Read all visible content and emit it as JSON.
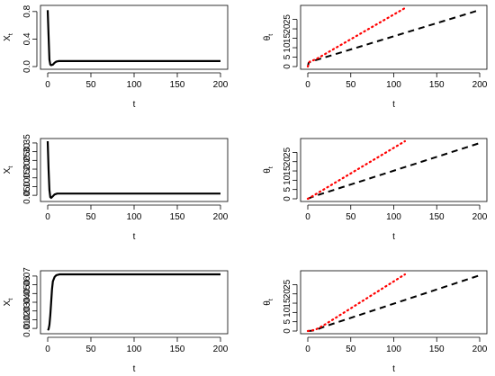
{
  "chart_data": [
    {
      "type": "line",
      "xlabel": "t",
      "ylabel": "X",
      "ylabel_sub": "t",
      "xlim": [
        0,
        200
      ],
      "ylim": [
        0,
        0.85
      ],
      "x_ticks": [
        0,
        50,
        100,
        150,
        200
      ],
      "y_ticks": [
        0.0,
        0.4,
        0.8
      ],
      "y_tick_labels": [
        "0.0",
        "0.4",
        "0.8"
      ],
      "series": [
        {
          "color": "#000000",
          "style": "solid",
          "points": [
            [
              0,
              0.82
            ],
            [
              1,
              0.45
            ],
            [
              2,
              0.1
            ],
            [
              3,
              0.03
            ],
            [
              4,
              0.02
            ],
            [
              6,
              0.028
            ],
            [
              8,
              0.055
            ],
            [
              10,
              0.073
            ],
            [
              13,
              0.08
            ],
            [
              20,
              0.08
            ],
            [
              200,
              0.08
            ]
          ]
        }
      ]
    },
    {
      "type": "line",
      "xlabel": "t",
      "ylabel": "θ",
      "ylabel_sub": "t",
      "xlim": [
        0,
        200
      ],
      "ylim": [
        0,
        31
      ],
      "x_ticks": [
        0,
        50,
        100,
        150,
        200
      ],
      "y_ticks": [
        0,
        5,
        10,
        15,
        20,
        25
      ],
      "y_tick_labels": [
        "0",
        "5",
        "10",
        "15",
        "20",
        "25"
      ],
      "series": [
        {
          "color": "#000000",
          "style": "dashed",
          "points": [
            [
              0,
              0
            ],
            [
              1,
              2
            ],
            [
              3,
              2.5
            ],
            [
              10,
              3.5
            ],
            [
              200,
              30
            ]
          ]
        },
        {
          "color": "#ff0000",
          "style": "dotted",
          "points": [
            [
              0,
              0
            ],
            [
              2,
              2.5
            ],
            [
              10,
              4
            ],
            [
              113,
              31
            ]
          ]
        }
      ]
    },
    {
      "type": "line",
      "xlabel": "t",
      "ylabel": "X",
      "ylabel_sub": "t",
      "xlim": [
        0,
        200
      ],
      "ylim": [
        0.03,
        0.36
      ],
      "x_ticks": [
        0,
        50,
        100,
        150,
        200
      ],
      "y_ticks": [
        0.05,
        0.1,
        0.15,
        0.2,
        0.25,
        0.3,
        0.35
      ],
      "y_tick_labels": [
        "0.05",
        "0.10",
        "0.15",
        "0.20",
        "0.25",
        "0.30",
        "0.35"
      ],
      "series": [
        {
          "color": "#000000",
          "style": "solid",
          "points": [
            [
              0,
              0.36
            ],
            [
              1,
              0.2
            ],
            [
              2,
              0.08
            ],
            [
              3,
              0.04
            ],
            [
              4,
              0.035
            ],
            [
              6,
              0.045
            ],
            [
              8,
              0.055
            ],
            [
              11,
              0.06
            ],
            [
              20,
              0.06
            ],
            [
              200,
              0.06
            ]
          ]
        }
      ]
    },
    {
      "type": "line",
      "xlabel": "t",
      "ylabel": "θ",
      "ylabel_sub": "t",
      "xlim": [
        0,
        200
      ],
      "ylim": [
        0,
        31
      ],
      "x_ticks": [
        0,
        50,
        100,
        150,
        200
      ],
      "y_ticks": [
        0,
        5,
        10,
        15,
        20,
        25
      ],
      "y_tick_labels": [
        "0",
        "5",
        "10",
        "15",
        "20",
        "25"
      ],
      "series": [
        {
          "color": "#000000",
          "style": "dashed",
          "points": [
            [
              0,
              0
            ],
            [
              5,
              1
            ],
            [
              200,
              30
            ]
          ]
        },
        {
          "color": "#ff0000",
          "style": "dotted",
          "points": [
            [
              0,
              0
            ],
            [
              5,
              1.3
            ],
            [
              113,
              31
            ]
          ]
        }
      ]
    },
    {
      "type": "line",
      "xlabel": "t",
      "ylabel": "X",
      "ylabel_sub": "t",
      "xlim": [
        0,
        200
      ],
      "ylim": [
        0.007,
        0.073
      ],
      "x_ticks": [
        0,
        50,
        100,
        150,
        200
      ],
      "y_ticks": [
        0.01,
        0.02,
        0.03,
        0.04,
        0.05,
        0.06,
        0.07
      ],
      "y_tick_labels": [
        "0.01",
        "0.02",
        "0.03",
        "0.04",
        "0.05",
        "0.06",
        "0.07"
      ],
      "series": [
        {
          "color": "#000000",
          "style": "solid",
          "points": [
            [
              0,
              0.008
            ],
            [
              1,
              0.009
            ],
            [
              2,
              0.014
            ],
            [
              3,
              0.025
            ],
            [
              4,
              0.04
            ],
            [
              5,
              0.055
            ],
            [
              6,
              0.064
            ],
            [
              8,
              0.069
            ],
            [
              10,
              0.071
            ],
            [
              14,
              0.072
            ],
            [
              200,
              0.072
            ]
          ]
        }
      ]
    },
    {
      "type": "line",
      "xlabel": "t",
      "ylabel": "θ",
      "ylabel_sub": "t",
      "xlim": [
        0,
        200
      ],
      "ylim": [
        0,
        31
      ],
      "x_ticks": [
        0,
        50,
        100,
        150,
        200
      ],
      "y_ticks": [
        0,
        5,
        10,
        15,
        20,
        25
      ],
      "y_tick_labels": [
        "0",
        "5",
        "10",
        "15",
        "20",
        "25"
      ],
      "series": [
        {
          "color": "#000000",
          "style": "dashed",
          "points": [
            [
              0,
              0
            ],
            [
              5,
              0.2
            ],
            [
              10,
              0.7
            ],
            [
              15,
              1.6
            ],
            [
              20,
              2.5
            ],
            [
              200,
              30
            ]
          ]
        },
        {
          "color": "#ff0000",
          "style": "dotted",
          "points": [
            [
              0,
              0
            ],
            [
              5,
              0.3
            ],
            [
              10,
              1
            ],
            [
              15,
              2.2
            ],
            [
              20,
              3.5
            ],
            [
              113,
              30.5
            ]
          ]
        }
      ]
    }
  ]
}
